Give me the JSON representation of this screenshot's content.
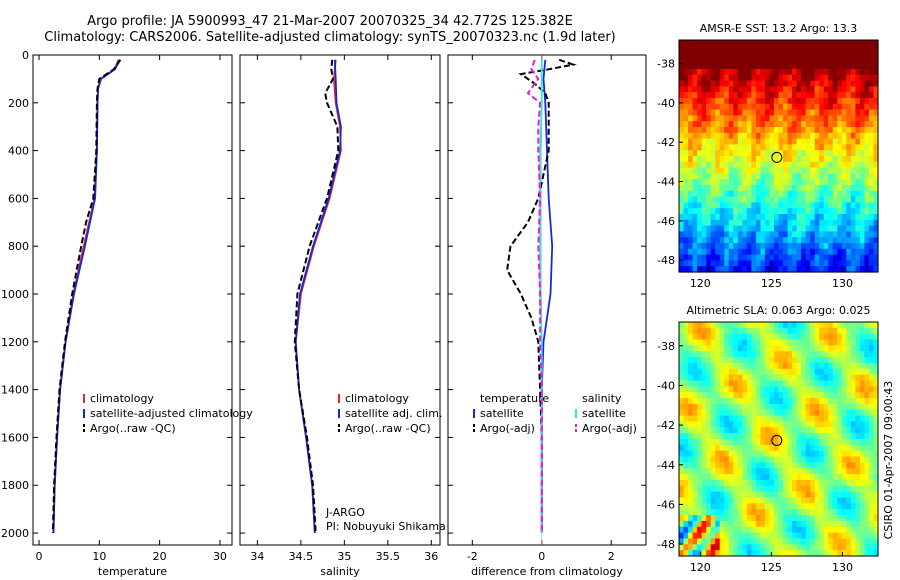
{
  "header": {
    "line1": "Argo profile: JA 5900993_47 21-Mar-2007 20070325_34 42.772S 125.382E",
    "line2": "Climatology: CARS2006. Satellite-adjusted climatology: synTS_20070323.nc (1.9d later)"
  },
  "colors": {
    "climatology": "#e8262b",
    "satellite": "#1428d8",
    "argo": "#000000",
    "sat_salinity": "#2ee8e8",
    "argo_salinity": "#e020e0"
  },
  "chart_data": [
    {
      "type": "line",
      "name": "temperature-panel",
      "xlabel": "temperature",
      "ylabel": "",
      "xlim": [
        -1,
        32
      ],
      "ylim": [
        2050,
        0
      ],
      "xticks": [
        "0",
        "10",
        "20",
        "30"
      ],
      "xtick_values": [
        0,
        10,
        20,
        30
      ],
      "yticks": [
        "0",
        "200",
        "400",
        "600",
        "800",
        "1000",
        "1200",
        "1400",
        "1600",
        "1800",
        "2000"
      ],
      "ytick_values": [
        0,
        200,
        400,
        600,
        800,
        1000,
        1200,
        1400,
        1600,
        1800,
        2000
      ],
      "legend": [
        "climatology",
        "satellite-adjusted climatology",
        "Argo(..raw -QC)"
      ],
      "series": [
        {
          "name": "climatology",
          "color": "#e8262b",
          "depth": [
            20,
            60,
            100,
            140,
            200,
            400,
            600,
            800,
            1000,
            1200,
            1400,
            1600,
            1800,
            2000
          ],
          "values": [
            13.2,
            12.5,
            10.2,
            9.8,
            9.7,
            9.6,
            9.2,
            7.4,
            5.7,
            4.4,
            3.5,
            3.0,
            2.6,
            2.4
          ]
        },
        {
          "name": "satellite",
          "color": "#1428d8",
          "depth": [
            20,
            60,
            100,
            140,
            200,
            400,
            600,
            800,
            1000,
            1200,
            1400,
            1600,
            1800,
            2000
          ],
          "values": [
            13.4,
            12.6,
            10.3,
            9.8,
            9.7,
            9.6,
            9.3,
            7.6,
            5.8,
            4.4,
            3.5,
            3.0,
            2.6,
            2.4
          ]
        },
        {
          "name": "argo",
          "color": "#000000",
          "dashed": true,
          "depth": [
            20,
            60,
            100,
            140,
            200,
            400,
            600,
            700,
            800,
            1000,
            1200,
            1400,
            1600,
            1800,
            2000
          ],
          "values": [
            13.5,
            12.4,
            10.0,
            9.7,
            9.6,
            9.5,
            9.0,
            7.8,
            7.0,
            5.5,
            4.3,
            3.4,
            2.9,
            2.5,
            2.3
          ]
        }
      ]
    },
    {
      "type": "line",
      "name": "salinity-panel",
      "xlabel": "salinity",
      "ylabel": "",
      "xlim": [
        33.8,
        36.1
      ],
      "ylim": [
        2050,
        0
      ],
      "xticks": [
        "34",
        "34.5",
        "35",
        "35.5",
        "36"
      ],
      "xtick_values": [
        34,
        34.5,
        35,
        35.5,
        36
      ],
      "legend": [
        "climatology",
        "satellite adj. clim.",
        "Argo(..raw -QC)"
      ],
      "series": [
        {
          "name": "climatology",
          "color": "#e8262b",
          "depth": [
            20,
            100,
            200,
            300,
            400,
            600,
            800,
            1000,
            1200,
            1400,
            1600,
            1800,
            2000
          ],
          "values": [
            34.9,
            34.88,
            34.9,
            34.95,
            34.96,
            34.83,
            34.65,
            34.5,
            34.44,
            34.48,
            34.56,
            34.63,
            34.66
          ]
        },
        {
          "name": "satellite",
          "color": "#1428d8",
          "depth": [
            20,
            100,
            200,
            300,
            400,
            600,
            800,
            1000,
            1200,
            1400,
            1600,
            1800,
            2000
          ],
          "values": [
            34.89,
            34.9,
            34.91,
            34.96,
            34.95,
            34.82,
            34.64,
            34.49,
            34.44,
            34.48,
            34.56,
            34.63,
            34.66
          ]
        },
        {
          "name": "argo",
          "color": "#000000",
          "dashed": true,
          "depth": [
            20,
            60,
            100,
            160,
            200,
            300,
            400,
            600,
            800,
            1000,
            1200,
            1400,
            1600,
            1800,
            2000
          ],
          "values": [
            34.86,
            34.85,
            34.87,
            34.78,
            34.8,
            34.92,
            34.93,
            34.8,
            34.6,
            34.46,
            34.43,
            34.48,
            34.57,
            34.64,
            34.67
          ]
        }
      ],
      "annotation": [
        "J-ARGO",
        "PI: Nobuyuki Shikama"
      ]
    },
    {
      "type": "line",
      "name": "difference-panel",
      "xlabel": "difference from climatology",
      "ylabel": "",
      "xlim": [
        -2.7,
        3.0
      ],
      "ylim": [
        2050,
        0
      ],
      "xticks": [
        "-2",
        "0",
        "2"
      ],
      "xtick_values": [
        -2,
        0,
        2
      ],
      "legend_left": [
        "temperature",
        "satellite",
        "Argo(-adj)"
      ],
      "legend_right": [
        "salinity",
        "satellite",
        "Argo(-adj)"
      ],
      "series": [
        {
          "name": "temperature satellite",
          "color": "#1428d8",
          "depth": [
            20,
            100,
            200,
            400,
            600,
            800,
            1000,
            1200,
            1400,
            1600,
            1800,
            2000
          ],
          "values": [
            0.1,
            0.05,
            0.1,
            0.15,
            0.2,
            0.3,
            0.25,
            0.05,
            0.0,
            0.0,
            0.0,
            0.0
          ]
        },
        {
          "name": "temperature argo",
          "color": "#000000",
          "dashed": true,
          "depth": [
            20,
            40,
            60,
            80,
            120,
            160,
            200,
            400,
            600,
            700,
            800,
            900,
            1000,
            1100,
            1200,
            1400,
            1600,
            1800,
            2000
          ],
          "values": [
            0.5,
            0.9,
            0.2,
            -0.6,
            -0.2,
            0.1,
            0.2,
            0.2,
            -0.1,
            -0.4,
            -0.9,
            -1.0,
            -0.6,
            -0.3,
            -0.1,
            -0.05,
            0.0,
            0.0,
            0.0
          ]
        },
        {
          "name": "salinity satellite",
          "color": "#2ee8e8",
          "depth": [
            20,
            200,
            400,
            600,
            800,
            1000,
            1200,
            1400,
            1600,
            1800,
            2000
          ],
          "values": [
            0.0,
            0.0,
            -0.05,
            -0.05,
            -0.05,
            -0.05,
            0.0,
            0.0,
            0.0,
            0.0,
            0.0
          ]
        },
        {
          "name": "salinity argo",
          "color": "#e020e0",
          "dashed": true,
          "depth": [
            20,
            60,
            100,
            160,
            200,
            300,
            400,
            600,
            800,
            1000,
            1200,
            1400,
            1600,
            1800,
            2000
          ],
          "values": [
            -0.2,
            -0.3,
            -0.1,
            -0.4,
            -0.05,
            -0.1,
            -0.1,
            -0.05,
            -0.1,
            -0.05,
            -0.05,
            0.0,
            0.0,
            0.0,
            0.0
          ]
        }
      ]
    },
    {
      "type": "heatmap",
      "name": "amsre-sst-map",
      "title": "AMSR-E SST: 13.2 Argo: 13.3",
      "xlim": [
        118.5,
        132.5
      ],
      "ylim": [
        -48.6,
        -36.8
      ],
      "xticks": [
        "120",
        "125",
        "130"
      ],
      "xtick_values": [
        120,
        125,
        130
      ],
      "yticks": [
        "-38",
        "-40",
        "-42",
        "-44",
        "-46",
        "-48"
      ],
      "ytick_values": [
        -38,
        -40,
        -42,
        -44,
        -46,
        -48
      ],
      "marker": {
        "lon": 125.382,
        "lat": -42.772
      }
    },
    {
      "type": "heatmap",
      "name": "altimetric-sla-map",
      "title": "Altimetric SLA: 0.063 Argo: 0.025",
      "xlim": [
        118.5,
        132.5
      ],
      "ylim": [
        -48.6,
        -36.8
      ],
      "xticks": [
        "120",
        "125",
        "130"
      ],
      "xtick_values": [
        120,
        125,
        130
      ],
      "yticks": [
        "-38",
        "-40",
        "-42",
        "-44",
        "-46",
        "-48"
      ],
      "ytick_values": [
        -38,
        -40,
        -42,
        -44,
        -46,
        -48
      ],
      "marker": {
        "lon": 125.382,
        "lat": -42.772
      },
      "side_label": "CSIRO 01-Apr-2007 09:00:43"
    }
  ]
}
